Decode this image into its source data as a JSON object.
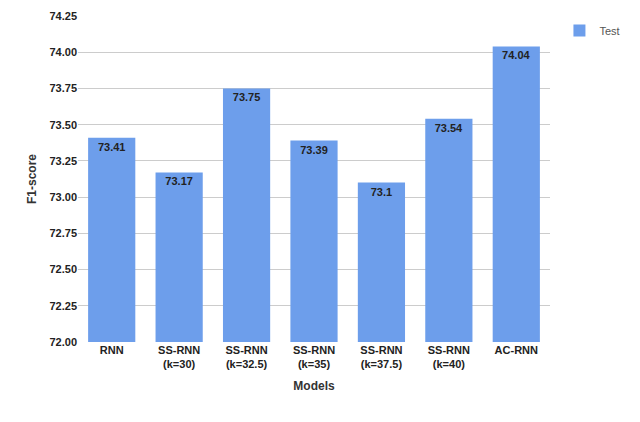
{
  "chart_data": {
    "type": "bar",
    "x_label": "Models",
    "y_label": "F1-score",
    "categories": [
      "RNN",
      "SS-RNN\n(k=30)",
      "SS-RNN\n(k=32.5)",
      "SS-RNN\n(k=35)",
      "SS-RNN\n(k=37.5)",
      "SS-RNN\n(k=40)",
      "AC-RNN"
    ],
    "series": [
      {
        "name": "Test",
        "color": "#6d9eeb",
        "values": [
          73.41,
          73.17,
          73.75,
          73.39,
          73.1,
          73.54,
          74.04
        ]
      }
    ],
    "ylim": [
      72,
      74.25
    ],
    "yticks": [
      {
        "value": 72,
        "label": "72.00"
      },
      {
        "value": 72.25,
        "label": "72.25"
      },
      {
        "value": 72.5,
        "label": "72.50"
      },
      {
        "value": 72.75,
        "label": "72.75"
      },
      {
        "value": 73,
        "label": "73.00"
      },
      {
        "value": 73.25,
        "label": "73.25"
      },
      {
        "value": 73.5,
        "label": "73.50"
      },
      {
        "value": 73.75,
        "label": "73.75"
      },
      {
        "value": 74,
        "label": "74.00"
      },
      {
        "value": 74.25,
        "label": "74.25"
      }
    ],
    "grid": true,
    "legend": "top-right",
    "data_labels": true
  }
}
